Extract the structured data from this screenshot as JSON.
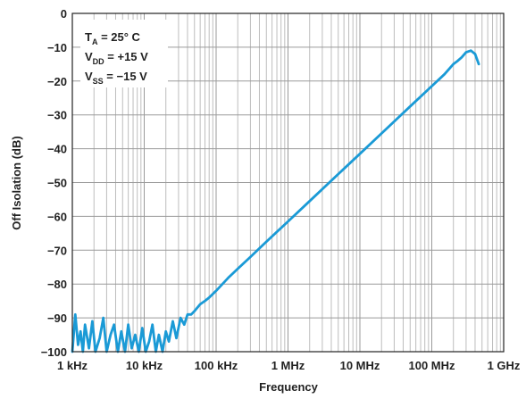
{
  "chart_data": {
    "type": "line",
    "xlabel": "Frequency",
    "ylabel": "Off Isolation (dB)",
    "xscale": "log",
    "xlim": [
      1000,
      1000000000
    ],
    "ylim": [
      -100,
      0
    ],
    "grid": true,
    "x_tick_labels": [
      "1 kHz",
      "10 kHz",
      "100 kHz",
      "1 MHz",
      "10 MHz",
      "100 MHz",
      "1 GHz"
    ],
    "x_tick_values": [
      1000,
      10000,
      100000,
      1000000,
      10000000,
      100000000,
      1000000000
    ],
    "y_tick_labels": [
      "0",
      "−10",
      "−20",
      "−30",
      "−40",
      "−50",
      "−60",
      "−70",
      "−80",
      "−90",
      "−100"
    ],
    "y_tick_values": [
      0,
      -10,
      -20,
      -30,
      -40,
      -50,
      -60,
      -70,
      -80,
      -90,
      -100
    ],
    "conditions": [
      {
        "symbol": "T",
        "sub": "A",
        "rest": " = 25° C"
      },
      {
        "symbol": "V",
        "sub": "DD",
        "rest": " = +15 V"
      },
      {
        "symbol": "V",
        "sub": "SS",
        "rest": " = −15 V"
      }
    ],
    "series": [
      {
        "color": "#1a9ad6",
        "x": [
          1000,
          1100,
          1200,
          1300,
          1400,
          1500,
          1700,
          1900,
          2100,
          2400,
          2700,
          3000,
          3400,
          3800,
          4300,
          4800,
          5400,
          6000,
          6700,
          7500,
          8400,
          9400,
          10500,
          11700,
          13000,
          14500,
          16000,
          18000,
          20000,
          22000,
          25000,
          28000,
          32000,
          36000,
          40000,
          45000,
          50000,
          60000,
          70000,
          80000,
          100000,
          150000,
          200000,
          300000,
          500000,
          1000000,
          2000000,
          5000000,
          10000000,
          20000000,
          50000000,
          100000000,
          150000000,
          200000000,
          230000000,
          260000000,
          300000000,
          350000000,
          400000000,
          450000000
        ],
        "y": [
          -100,
          -89,
          -98,
          -94,
          -100,
          -92,
          -99,
          -91,
          -100,
          -96,
          -90,
          -100,
          -95,
          -92,
          -100,
          -94,
          -100,
          -92,
          -99,
          -95,
          -100,
          -93,
          -100,
          -97,
          -92,
          -100,
          -95,
          -100,
          -94,
          -97,
          -91,
          -96,
          -90,
          -92,
          -89,
          -89,
          -88,
          -86,
          -85,
          -84,
          -82,
          -78,
          -75.5,
          -72,
          -67.5,
          -61.5,
          -55.5,
          -47.5,
          -41.5,
          -35.5,
          -27.5,
          -21.5,
          -18,
          -15,
          -14,
          -13,
          -11.5,
          -11,
          -12,
          -15
        ]
      }
    ]
  }
}
